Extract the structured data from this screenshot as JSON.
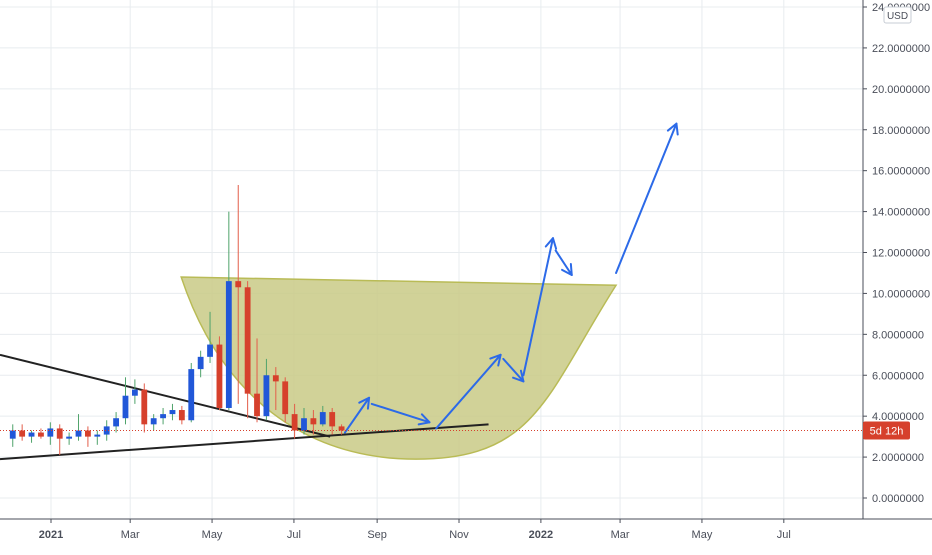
{
  "currency_badge": "USD",
  "price_label": "5d 12h",
  "colors": {
    "up": "#2157d8",
    "down": "#d6402c",
    "wick": "#e35d4a",
    "grid": "#e8ecef",
    "axis_line": "#4a4e59",
    "axis_text": "#4a4e59",
    "trendline": "#222222",
    "cup": "#b9bb56",
    "cup_fill": "#c9ca86",
    "arrow": "#2c6ae8",
    "price_label_bg": "#d6402c",
    "price_line": "#d6402c"
  },
  "chart_data": {
    "type": "candlestick",
    "interval": "1W",
    "y_axis": {
      "min": -0.8,
      "max": 24.2,
      "ticks": [
        0,
        2,
        4,
        6,
        8,
        10,
        12,
        14,
        16,
        18,
        20,
        22,
        24
      ],
      "tick_labels": [
        "0.0000000",
        "2.0000000",
        "4.0000000",
        "6.0000000",
        "8.0000000",
        "10.0000000",
        "12.0000000",
        "14.0000000",
        "16.0000000",
        "18.0000000",
        "20.0000000",
        "22.0000000",
        "24.0000000"
      ]
    },
    "x_axis": {
      "start": "2020-11-24",
      "end": "2022-08-29",
      "ticks": [
        "2021-01-01",
        "2021-03-01",
        "2021-05-01",
        "2021-07-01",
        "2021-09-01",
        "2021-11-01",
        "2022-01-01",
        "2022-03-01",
        "2022-05-01",
        "2022-07-01"
      ],
      "tick_labels": [
        "2021",
        "Mar",
        "May",
        "Jul",
        "Sep",
        "Nov",
        "2022",
        "Mar",
        "May",
        "Jul"
      ]
    },
    "last_price": 3.3,
    "candles": [
      {
        "date": "2020-11-30",
        "open": 2.9,
        "high": 3.6,
        "low": 2.5,
        "close": 3.3
      },
      {
        "date": "2020-12-07",
        "open": 3.3,
        "high": 3.6,
        "low": 2.8,
        "close": 3.0
      },
      {
        "date": "2020-12-14",
        "open": 3.0,
        "high": 3.3,
        "low": 2.7,
        "close": 3.2
      },
      {
        "date": "2020-12-21",
        "open": 3.2,
        "high": 3.4,
        "low": 2.9,
        "close": 3.0
      },
      {
        "date": "2020-12-28",
        "open": 3.0,
        "high": 3.7,
        "low": 2.6,
        "close": 3.4
      },
      {
        "date": "2021-01-04",
        "open": 3.4,
        "high": 3.6,
        "low": 2.1,
        "close": 2.9
      },
      {
        "date": "2021-01-11",
        "open": 2.9,
        "high": 3.2,
        "low": 2.6,
        "close": 3.0
      },
      {
        "date": "2021-01-18",
        "open": 3.0,
        "high": 4.1,
        "low": 2.8,
        "close": 3.3
      },
      {
        "date": "2021-01-25",
        "open": 3.3,
        "high": 3.5,
        "low": 2.5,
        "close": 3.0
      },
      {
        "date": "2021-02-01",
        "open": 3.0,
        "high": 3.3,
        "low": 2.6,
        "close": 3.1
      },
      {
        "date": "2021-02-08",
        "open": 3.1,
        "high": 3.8,
        "low": 2.8,
        "close": 3.5
      },
      {
        "date": "2021-02-15",
        "open": 3.5,
        "high": 4.2,
        "low": 3.2,
        "close": 3.9
      },
      {
        "date": "2021-02-22",
        "open": 3.9,
        "high": 5.9,
        "low": 3.6,
        "close": 5.0
      },
      {
        "date": "2021-03-01",
        "open": 5.0,
        "high": 5.8,
        "low": 4.6,
        "close": 5.3
      },
      {
        "date": "2021-03-08",
        "open": 5.3,
        "high": 5.6,
        "low": 3.2,
        "close": 3.6
      },
      {
        "date": "2021-03-15",
        "open": 3.6,
        "high": 4.1,
        "low": 3.3,
        "close": 3.9
      },
      {
        "date": "2021-03-22",
        "open": 3.9,
        "high": 4.4,
        "low": 3.6,
        "close": 4.1
      },
      {
        "date": "2021-03-29",
        "open": 4.1,
        "high": 4.6,
        "low": 3.8,
        "close": 4.3
      },
      {
        "date": "2021-04-05",
        "open": 4.3,
        "high": 4.5,
        "low": 3.6,
        "close": 3.8
      },
      {
        "date": "2021-04-12",
        "open": 3.8,
        "high": 6.6,
        "low": 3.7,
        "close": 6.3
      },
      {
        "date": "2021-04-19",
        "open": 6.3,
        "high": 7.2,
        "low": 5.9,
        "close": 6.9
      },
      {
        "date": "2021-04-26",
        "open": 6.9,
        "high": 9.1,
        "low": 6.6,
        "close": 7.5
      },
      {
        "date": "2021-05-03",
        "open": 7.5,
        "high": 7.9,
        "low": 4.3,
        "close": 4.4
      },
      {
        "date": "2021-05-10",
        "open": 4.4,
        "high": 14.0,
        "low": 4.3,
        "close": 10.6
      },
      {
        "date": "2021-05-17",
        "open": 10.6,
        "high": 15.3,
        "low": 4.6,
        "close": 10.3
      },
      {
        "date": "2021-05-24",
        "open": 10.3,
        "high": 10.6,
        "low": 3.9,
        "close": 5.1
      },
      {
        "date": "2021-05-31",
        "open": 5.1,
        "high": 7.8,
        "low": 3.7,
        "close": 4.0
      },
      {
        "date": "2021-06-07",
        "open": 4.0,
        "high": 6.8,
        "low": 3.8,
        "close": 6.0
      },
      {
        "date": "2021-06-14",
        "open": 6.0,
        "high": 6.4,
        "low": 4.3,
        "close": 5.7
      },
      {
        "date": "2021-06-21",
        "open": 5.7,
        "high": 5.9,
        "low": 3.7,
        "close": 4.1
      },
      {
        "date": "2021-06-28",
        "open": 4.1,
        "high": 4.6,
        "low": 2.9,
        "close": 3.3
      },
      {
        "date": "2021-07-05",
        "open": 3.3,
        "high": 4.4,
        "low": 3.1,
        "close": 3.9
      },
      {
        "date": "2021-07-12",
        "open": 3.9,
        "high": 4.3,
        "low": 3.1,
        "close": 3.6
      },
      {
        "date": "2021-07-19",
        "open": 3.6,
        "high": 4.5,
        "low": 3.5,
        "close": 4.2
      },
      {
        "date": "2021-07-26",
        "open": 4.2,
        "high": 4.4,
        "low": 3.1,
        "close": 3.5
      },
      {
        "date": "2021-08-02",
        "open": 3.5,
        "high": 3.6,
        "low": 3.1,
        "close": 3.3
      }
    ],
    "annotations": {
      "trendlines": [
        {
          "from": {
            "date": "2020-11-24",
            "value": 1.9
          },
          "to": {
            "date": "2021-11-23",
            "value": 3.6
          }
        },
        {
          "from": {
            "date": "2020-11-24",
            "value": 7.0
          },
          "to": {
            "date": "2021-07-28",
            "value": 3.0
          }
        }
      ],
      "cup": {
        "rim_left": {
          "date": "2021-04-08",
          "value": 10.8
        },
        "rim_right": {
          "date": "2022-02-26",
          "value": 10.4
        },
        "bottom": {
          "date": "2021-09-30",
          "value": 1.9
        }
      },
      "arrows": [
        {
          "from": {
            "date": "2021-08-08",
            "value": 3.2
          },
          "to": {
            "date": "2021-08-26",
            "value": 4.9
          }
        },
        {
          "from": {
            "date": "2021-08-28",
            "value": 4.6
          },
          "to": {
            "date": "2021-10-10",
            "value": 3.7
          }
        },
        {
          "from": {
            "date": "2021-10-15",
            "value": 3.4
          },
          "to": {
            "date": "2021-12-02",
            "value": 7.0
          }
        },
        {
          "from": {
            "date": "2021-12-04",
            "value": 6.8
          },
          "to": {
            "date": "2021-12-19",
            "value": 5.7
          }
        },
        {
          "from": {
            "date": "2021-12-19",
            "value": 6.0
          },
          "to": {
            "date": "2022-01-10",
            "value": 12.7
          }
        },
        {
          "from": {
            "date": "2022-01-12",
            "value": 12.1
          },
          "to": {
            "date": "2022-01-24",
            "value": 10.9
          }
        },
        {
          "from": {
            "date": "2022-02-26",
            "value": 11.0
          },
          "to": {
            "date": "2022-04-12",
            "value": 18.3
          }
        }
      ]
    }
  }
}
